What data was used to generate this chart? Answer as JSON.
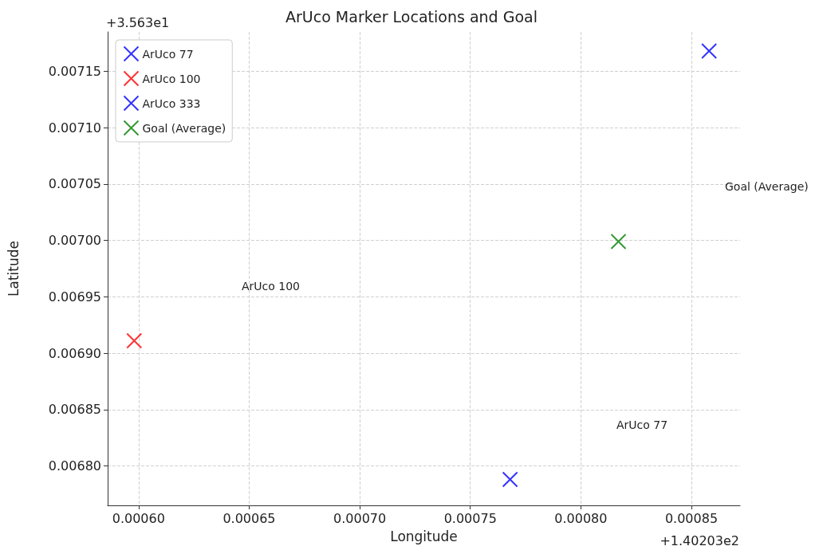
{
  "chart_data": {
    "type": "scatter",
    "title": "ArUco Marker Locations and Goal",
    "xlabel": "Longitude",
    "ylabel": "Latitude",
    "series": [
      {
        "name": "ArUco 77",
        "color": "#0000ff",
        "x": [
          0.000768
        ],
        "values": [
          0.006788
        ]
      },
      {
        "name": "ArUco 100",
        "color": "#ff0000",
        "x": [
          0.000598
        ],
        "values": [
          0.006911
        ]
      },
      {
        "name": "ArUco 333",
        "color": "#0000ff",
        "x": [
          0.000858
        ],
        "values": [
          0.007168
        ]
      },
      {
        "name": "Goal (Average)",
        "color": "#008000",
        "x": [
          0.000817
        ],
        "values": [
          0.006999
        ]
      }
    ],
    "xlim": [
      0.000586,
      0.000872
    ],
    "xticks": [
      {
        "value": 0.0006,
        "label": "0.00060"
      },
      {
        "value": 0.00065,
        "label": "0.00065"
      },
      {
        "value": 0.0007,
        "label": "0.00070"
      },
      {
        "value": 0.00075,
        "label": "0.00075"
      },
      {
        "value": 0.0008,
        "label": "0.00080"
      },
      {
        "value": 0.00085,
        "label": "0.00085"
      }
    ],
    "ylim": [
      0.006765,
      0.007185
    ],
    "yticks": [
      {
        "value": 0.0068,
        "label": "0.00680"
      },
      {
        "value": 0.00685,
        "label": "0.00685"
      },
      {
        "value": 0.0069,
        "label": "0.00690"
      },
      {
        "value": 0.00695,
        "label": "0.00695"
      },
      {
        "value": 0.007,
        "label": "0.00700"
      },
      {
        "value": 0.00705,
        "label": "0.00705"
      },
      {
        "value": 0.0071,
        "label": "0.00710"
      },
      {
        "value": 0.00715,
        "label": "0.00715"
      }
    ],
    "annotations": [
      "ArUco 77",
      "ArUco 100",
      "Goal (Average)",
      "+3.563e1",
      "+1.40203e2"
    ],
    "marker": "cross",
    "grid": true,
    "legend": "top left"
  }
}
